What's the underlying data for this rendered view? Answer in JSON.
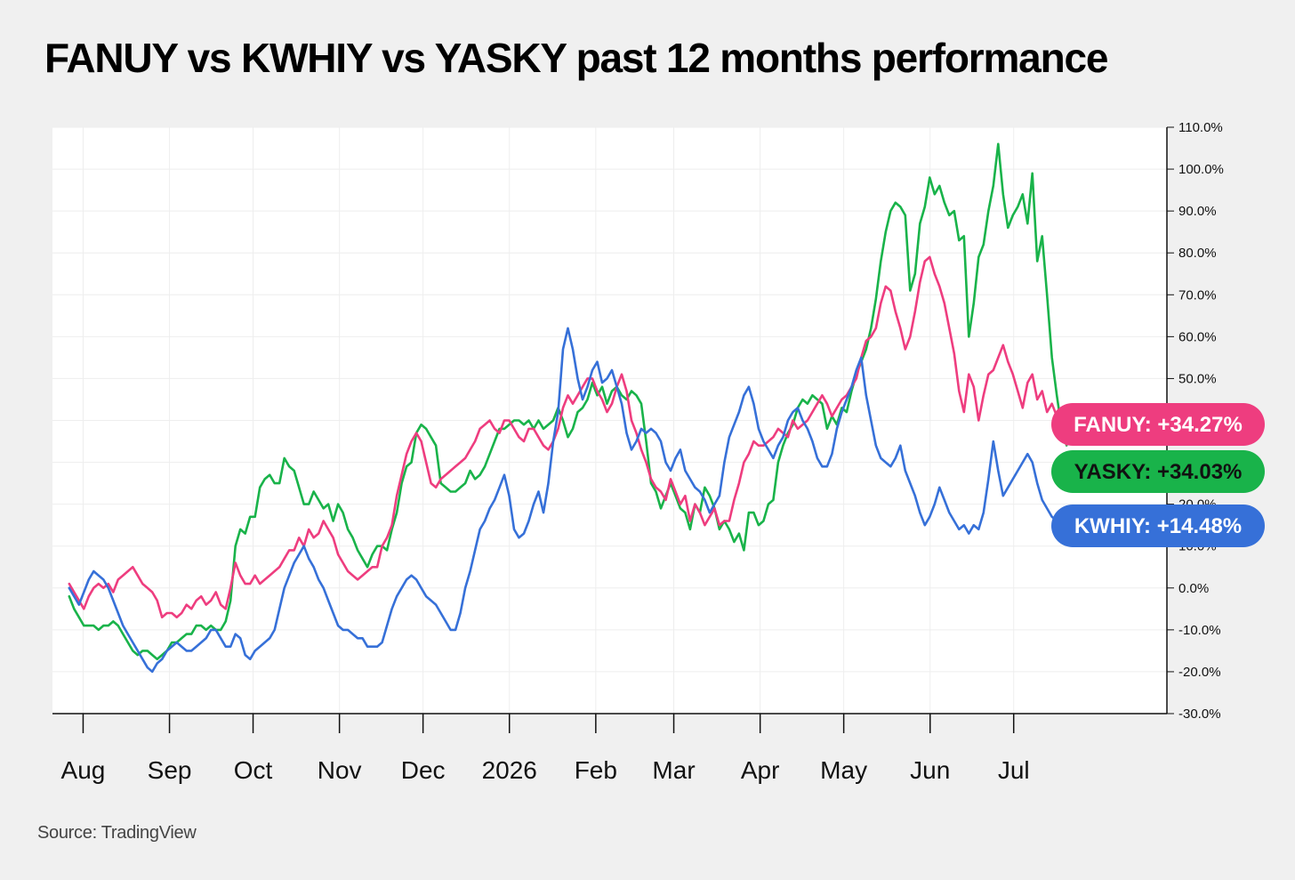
{
  "title": "FANUY vs KWHIY vs YASKY past 12 months performance",
  "source": "Source: TradingView",
  "colors": {
    "FANUY": "#ee3d7f",
    "YASKY": "#19b34a",
    "KWHIY": "#3670d8"
  },
  "chart_data": {
    "type": "line",
    "x_start": "2025-07-27",
    "x_end": "2026-07-20",
    "xlim": [
      "2025-07-21",
      "2026-08-25"
    ],
    "ylim": [
      -30,
      110
    ],
    "ytick_labels": [
      "110.0%",
      "100.0%",
      "90.0%",
      "80.0%",
      "70.0%",
      "60.0%",
      "50.0%",
      "40.0%",
      "30.0%",
      "20.0%",
      "10.0%",
      "0.0%",
      "-10.0%",
      "-20.0%",
      "-30.0%"
    ],
    "ytick_values": [
      110,
      100,
      90,
      80,
      70,
      60,
      50,
      40,
      30,
      20,
      10,
      0,
      -10,
      -20,
      -30
    ],
    "xticks": [
      {
        "label": "Aug",
        "date": "2025-08-01"
      },
      {
        "label": "Sep",
        "date": "2025-09-01"
      },
      {
        "label": "Oct",
        "date": "2025-10-01"
      },
      {
        "label": "Nov",
        "date": "2025-11-01"
      },
      {
        "label": "Dec",
        "date": "2025-12-01"
      },
      {
        "label": "2026",
        "date": "2026-01-01"
      },
      {
        "label": "Feb",
        "date": "2026-02-01"
      },
      {
        "label": "Mar",
        "date": "2026-03-01"
      },
      {
        "label": "Apr",
        "date": "2026-04-01"
      },
      {
        "label": "May",
        "date": "2026-05-01"
      },
      {
        "label": "Jun",
        "date": "2026-06-01"
      },
      {
        "label": "Jul",
        "date": "2026-07-01"
      }
    ],
    "series": [
      {
        "name": "YASKY",
        "badge": "YASKY: +34.03%",
        "values": [
          -2,
          -5,
          -7,
          -9,
          -9,
          -9,
          -10,
          -9,
          -9,
          -8,
          -9,
          -11,
          -13,
          -15,
          -16,
          -15,
          -15,
          -16,
          -17,
          -16,
          -15,
          -13,
          -13,
          -12,
          -11,
          -11,
          -9,
          -9,
          -10,
          -9,
          -10,
          -10,
          -8,
          -3,
          10,
          14,
          13,
          17,
          17,
          24,
          26,
          27,
          25,
          25,
          31,
          29,
          28,
          24,
          20,
          20,
          23,
          21,
          19,
          20,
          16,
          20,
          18,
          14,
          12,
          9,
          7,
          5,
          8,
          10,
          10,
          9,
          14,
          18,
          25,
          29,
          30,
          37,
          39,
          38,
          36,
          34,
          25,
          24,
          23,
          23,
          24,
          25,
          28,
          26,
          27,
          29,
          32,
          35,
          38,
          38,
          39,
          40,
          40,
          39,
          40,
          38,
          40,
          38,
          39,
          40,
          43,
          40,
          36,
          38,
          42,
          43,
          45,
          49,
          46,
          48,
          44,
          47,
          48,
          46,
          45,
          47,
          46,
          44,
          35,
          25,
          23,
          19,
          22,
          25,
          22,
          19,
          18,
          14,
          20,
          18,
          24,
          22,
          19,
          14,
          16,
          14,
          11,
          13,
          9,
          18,
          18,
          15,
          16,
          20,
          21,
          30,
          34,
          37,
          39,
          43,
          45,
          44,
          46,
          45,
          44,
          38,
          41,
          39,
          43,
          42,
          47,
          51,
          54,
          57,
          62,
          69,
          78,
          85,
          90,
          92,
          91,
          89,
          71,
          75,
          87,
          91,
          98,
          94,
          96,
          92,
          89,
          90,
          83,
          84,
          60,
          68,
          79,
          82,
          90,
          96,
          106,
          94,
          86,
          89,
          91,
          94,
          87,
          99,
          78,
          84,
          70,
          55,
          46,
          38,
          34.03
        ]
      },
      {
        "name": "FANUY",
        "badge": "FANUY: +34.27%",
        "values": [
          1,
          -1,
          -3,
          -5,
          -2,
          0,
          1,
          0,
          1,
          -1,
          2,
          3,
          4,
          5,
          3,
          1,
          0,
          -1,
          -3,
          -7,
          -6,
          -6,
          -7,
          -6,
          -4,
          -5,
          -3,
          -2,
          -4,
          -3,
          -1,
          -4,
          -5,
          0,
          6,
          3,
          1,
          1,
          3,
          1,
          2,
          3,
          4,
          5,
          7,
          9,
          9,
          12,
          10,
          14,
          12,
          13,
          16,
          14,
          12,
          8,
          6,
          4,
          3,
          2,
          3,
          4,
          5,
          5,
          10,
          12,
          15,
          22,
          27,
          32,
          35,
          37,
          35,
          30,
          25,
          24,
          26,
          27,
          28,
          29,
          30,
          31,
          33,
          35,
          38,
          39,
          40,
          38,
          37,
          40,
          40,
          38,
          36,
          35,
          38,
          38,
          36,
          34,
          33,
          35,
          38,
          43,
          46,
          44,
          46,
          48,
          50,
          50,
          47,
          45,
          42,
          44,
          48,
          51,
          47,
          40,
          37,
          33,
          30,
          26,
          24,
          23,
          21,
          26,
          23,
          20,
          22,
          16,
          20,
          18,
          15,
          17,
          19,
          15,
          16,
          16,
          21,
          25,
          30,
          32,
          35,
          34,
          34,
          35,
          36,
          38,
          37,
          36,
          40,
          38,
          39,
          40,
          42,
          44,
          46,
          44,
          41,
          43,
          45,
          46,
          48,
          50,
          55,
          59,
          60,
          62,
          68,
          72,
          71,
          66,
          62,
          57,
          60,
          66,
          73,
          78,
          79,
          75,
          72,
          68,
          62,
          56,
          47,
          42,
          51,
          48,
          40,
          46,
          51,
          52,
          55,
          58,
          54,
          51,
          47,
          43,
          49,
          51,
          45,
          47,
          42,
          44,
          41,
          40,
          34.27
        ]
      },
      {
        "name": "KWHIY",
        "badge": "KWHIY: +14.48%",
        "values": [
          0,
          -2,
          -4,
          -1,
          2,
          4,
          3,
          2,
          0,
          -3,
          -6,
          -9,
          -11,
          -13,
          -15,
          -17,
          -19,
          -20,
          -18,
          -17,
          -15,
          -14,
          -13,
          -14,
          -15,
          -15,
          -14,
          -13,
          -12,
          -10,
          -10,
          -12,
          -14,
          -14,
          -11,
          -12,
          -16,
          -17,
          -15,
          -14,
          -13,
          -12,
          -10,
          -5,
          0,
          3,
          6,
          8,
          10,
          7,
          5,
          2,
          0,
          -3,
          -6,
          -9,
          -10,
          -10,
          -11,
          -12,
          -12,
          -14,
          -14,
          -14,
          -13,
          -9,
          -5,
          -2,
          0,
          2,
          3,
          2,
          0,
          -2,
          -3,
          -4,
          -6,
          -8,
          -10,
          -10,
          -6,
          0,
          4,
          9,
          14,
          16,
          19,
          21,
          24,
          27,
          22,
          14,
          12,
          13,
          16,
          20,
          23,
          18,
          25,
          35,
          42,
          57,
          62,
          57,
          50,
          45,
          48,
          52,
          54,
          49,
          50,
          52,
          48,
          44,
          37,
          33,
          35,
          38,
          37,
          38,
          37,
          35,
          30,
          28,
          31,
          33,
          28,
          26,
          24,
          23,
          21,
          18,
          20,
          22,
          30,
          36,
          39,
          42,
          46,
          48,
          44,
          38,
          35,
          33,
          31,
          34,
          36,
          40,
          42,
          43,
          40,
          38,
          35,
          31,
          29,
          29,
          32,
          38,
          42,
          45,
          48,
          52,
          55,
          46,
          40,
          34,
          31,
          30,
          29,
          31,
          34,
          28,
          25,
          22,
          18,
          15,
          17,
          20,
          24,
          21,
          18,
          16,
          14,
          15,
          13,
          15,
          14,
          18,
          26,
          35,
          28,
          22,
          24,
          26,
          28,
          30,
          32,
          30,
          25,
          21,
          19,
          17,
          16,
          15,
          14.48
        ]
      }
    ]
  }
}
